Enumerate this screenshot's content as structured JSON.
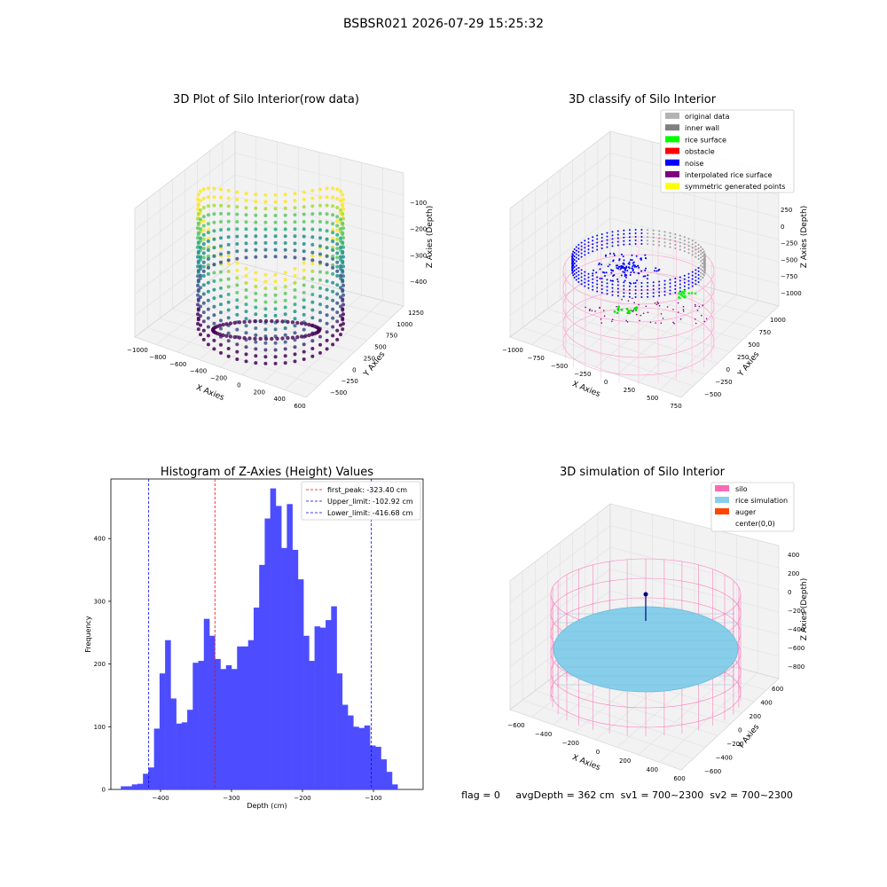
{
  "suptitle": "BSBSR021 2026-07-29 15:25:32",
  "panels": {
    "raw": {
      "title": "3D Plot of Silo Interior(row data)",
      "xlabel": "X Axies",
      "ylabel": "Y Axies",
      "zlabel": "Z Axies (Depth)",
      "xticks": [
        "−1000",
        "−800",
        "−600",
        "−400",
        "−200",
        "0",
        "200",
        "400",
        "600"
      ],
      "yticks": [
        "−500",
        "−250",
        "0",
        "250",
        "500",
        "750",
        "1000",
        "1250"
      ],
      "zticks": [
        "−100",
        "−200",
        "−300",
        "−400"
      ]
    },
    "classify": {
      "title": "3D classify of Silo Interior",
      "xlabel": "X Axies",
      "ylabel": "Y Axies",
      "zlabel": "Z Axies (Depth)",
      "xticks": [
        "−1000",
        "−750",
        "−500",
        "−250",
        "0",
        "250",
        "500",
        "750"
      ],
      "yticks": [
        "−500",
        "−250",
        "0",
        "250",
        "500",
        "750",
        "1000"
      ],
      "zticks": [
        "250",
        "0",
        "−250",
        "−500",
        "−750",
        "−1000"
      ],
      "legend": [
        {
          "label": "original data",
          "color": "#b3b3b3"
        },
        {
          "label": "inner wall",
          "color": "#808080"
        },
        {
          "label": "rice surface",
          "color": "#00ff00"
        },
        {
          "label": "obstacle",
          "color": "#ff0000"
        },
        {
          "label": "noise",
          "color": "#0000ff"
        },
        {
          "label": "interpolated rice surface",
          "color": "#800080"
        },
        {
          "label": "symmetric generated points",
          "color": "#ffff00"
        }
      ]
    },
    "sim": {
      "title": "3D simulation of Silo Interior",
      "xlabel": "X Axies",
      "ylabel": "Y Axies",
      "zlabel": "Z Axies (Depth)",
      "xticks": [
        "−600",
        "−400",
        "−200",
        "0",
        "200",
        "400",
        "600"
      ],
      "yticks": [
        "−600",
        "−400",
        "−200",
        "0",
        "200",
        "400",
        "600"
      ],
      "zticks": [
        "400",
        "200",
        "0",
        "−200",
        "−400",
        "−600",
        "−800"
      ],
      "legend": [
        {
          "label": "silo",
          "color": "#ff69b4"
        },
        {
          "label": "rice simulation",
          "color": "#87ceeb"
        },
        {
          "label": "auger",
          "color": "#ff4500"
        },
        {
          "label": "center(0,0)",
          "color": "#ffffff"
        }
      ]
    }
  },
  "status_line": "flag = 0     avgDepth = 362 cm  sv1 = 700~2300  sv2 = 700~2300",
  "chart_data": [
    {
      "type": "bar",
      "title": "Histogram of Z-Axies (Height) Values",
      "xlabel": "Depth (cm)",
      "ylabel": "Frequency",
      "xlim": [
        -470,
        -30
      ],
      "ylim": [
        0,
        495
      ],
      "xticks": [
        -400,
        -300,
        -200,
        -100
      ],
      "yticks": [
        0,
        100,
        200,
        300,
        400
      ],
      "bin_start": -456,
      "bin_width": 7.8,
      "values": [
        5,
        5,
        8,
        9,
        25,
        35,
        97,
        185,
        238,
        145,
        105,
        107,
        127,
        202,
        205,
        272,
        245,
        208,
        192,
        198,
        192,
        228,
        228,
        238,
        290,
        358,
        432,
        480,
        452,
        385,
        455,
        382,
        335,
        245,
        205,
        260,
        258,
        270,
        292,
        185,
        135,
        118,
        100,
        98,
        102,
        70,
        68,
        48,
        28,
        8
      ],
      "vlines": [
        {
          "label": "first_peak: -323.40 cm",
          "x": -323.4,
          "color": "#ff0000"
        },
        {
          "label": "Upper_limit: -102.92 cm",
          "x": -102.92,
          "color": "#0000ff"
        },
        {
          "label": "Lower_limit: -416.68 cm",
          "x": -416.68,
          "color": "#0000ff"
        }
      ],
      "bar_color": "#4d4dff"
    }
  ]
}
